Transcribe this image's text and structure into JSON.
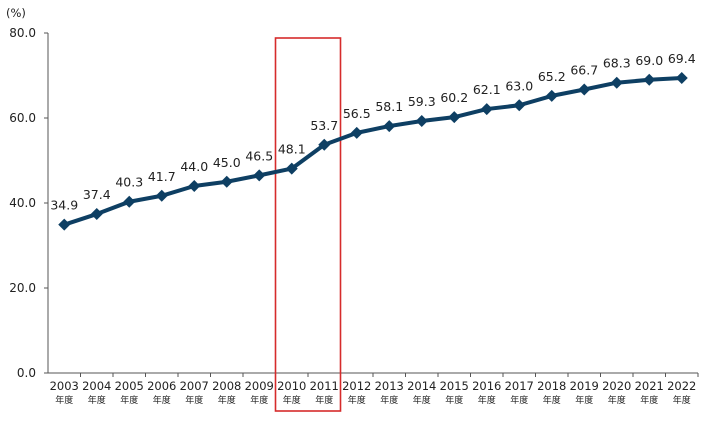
{
  "chart_data": {
    "type": "line",
    "title": "",
    "ylabel": "(%)",
    "xlabel": "",
    "ylim": [
      0,
      80
    ],
    "yticks": [
      "0.0",
      "20.0",
      "40.0",
      "60.0",
      "80.0"
    ],
    "grid": false,
    "legend": "none",
    "categories": [
      "2003",
      "2004",
      "2005",
      "2006",
      "2007",
      "2008",
      "2009",
      "2010",
      "2011",
      "2012",
      "2013",
      "2014",
      "2015",
      "2016",
      "2017",
      "2018",
      "2019",
      "2020",
      "2021",
      "2022"
    ],
    "category_suffix": "年度",
    "series": [
      {
        "values": [
          34.9,
          37.4,
          40.3,
          41.7,
          44.0,
          45.0,
          46.5,
          48.1,
          53.7,
          56.5,
          58.1,
          59.3,
          60.2,
          62.1,
          63.0,
          65.2,
          66.7,
          68.3,
          69.0,
          69.4
        ],
        "data_labels": [
          "34.9",
          "37.4",
          "40.3",
          "41.7",
          "44.0",
          "45.0",
          "46.5",
          "48.1",
          "53.7",
          "56.5",
          "58.1",
          "59.3",
          "60.2",
          "62.1",
          "63.0",
          "65.2",
          "66.7",
          "68.3",
          "69.0",
          "69.4"
        ],
        "color": "#0e3f63",
        "marker": "diamond"
      }
    ],
    "highlight": {
      "categories": [
        "2010",
        "2011"
      ],
      "color": "#d62b2b"
    }
  }
}
